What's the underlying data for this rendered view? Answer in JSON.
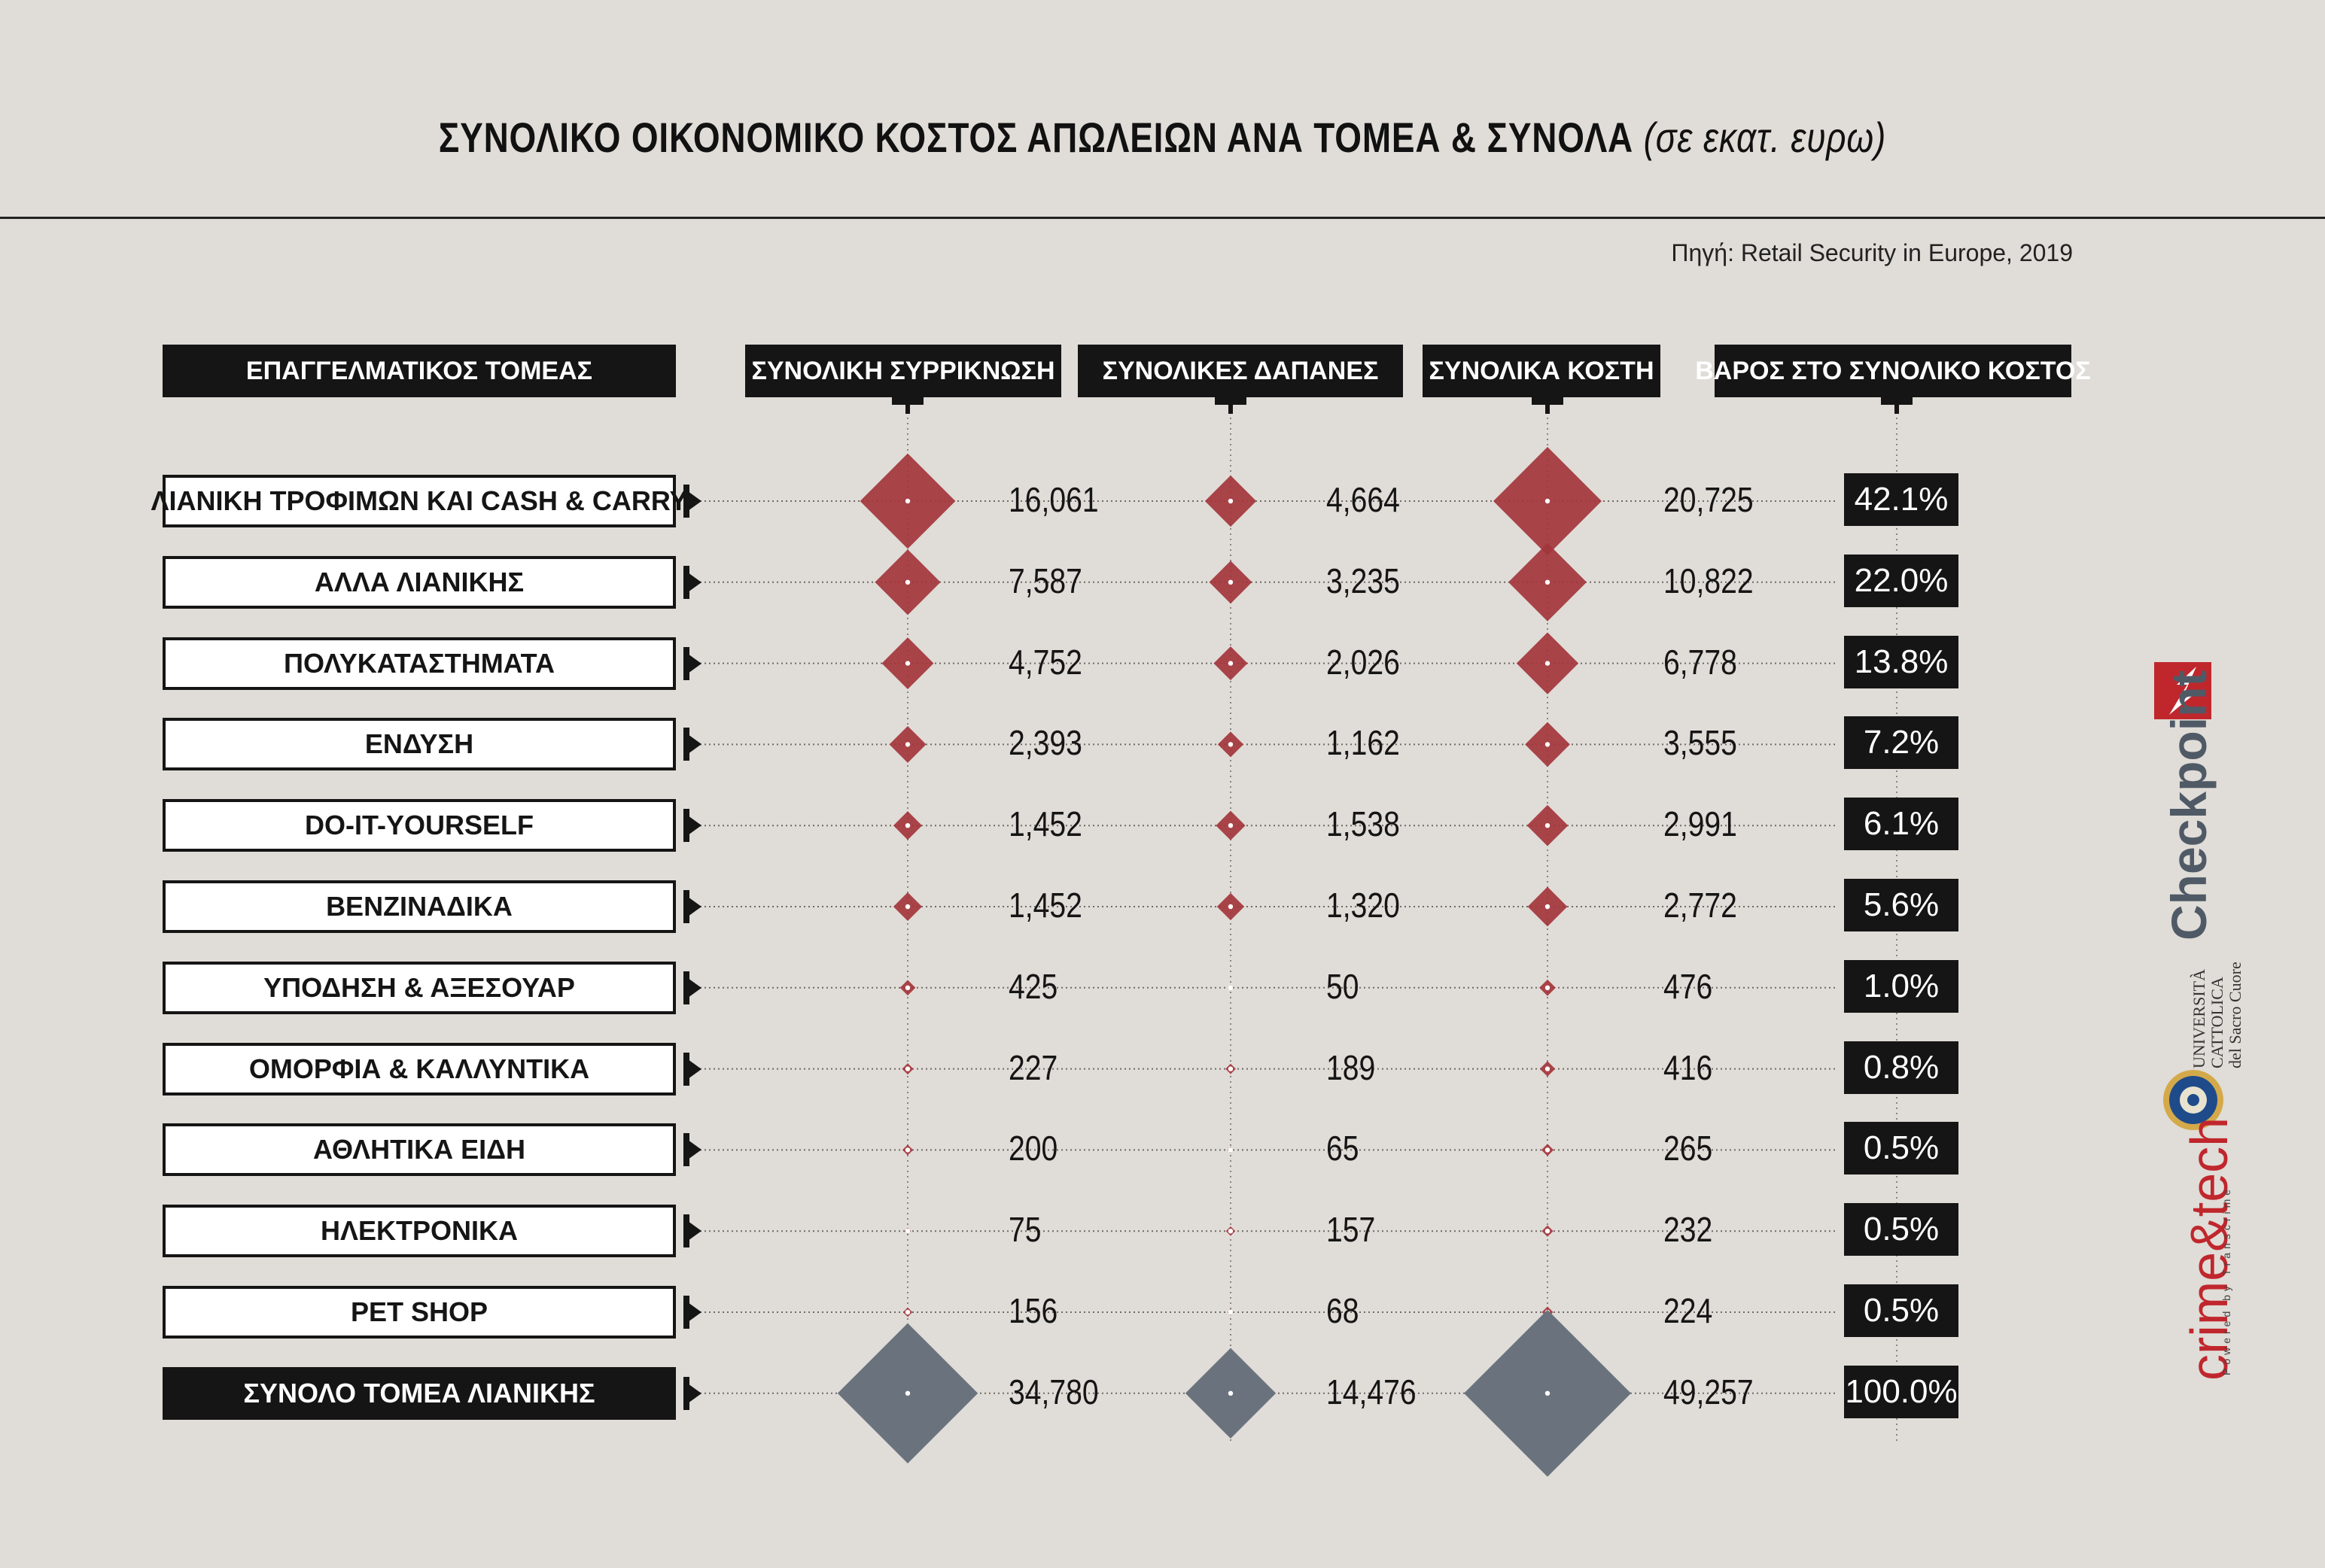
{
  "title": "ΣΥΝΟΛΙΚΟ ΟΙΚΟΝΟΜΙΚΟ ΚΟΣΤΟΣ ΑΠΩΛΕΙΩΝ ΑΝΑ ΤΟΜΕΑ & ΣΥΝΟΛΑ",
  "title_unit": "(σε εκατ. ευρω)",
  "source": "Πηγή: Retail Security in Europe, 2019",
  "colors": {
    "sector_diamond": "#a3353c",
    "total_diamond": "#6a737d",
    "background": "#e0dcd7",
    "dark": "#151515"
  },
  "logos": {
    "checkpoint": "Checkpoint",
    "ucsc": [
      "UNIVERSITÀ",
      "CATTOLICA",
      "del Sacro Cuore"
    ],
    "crimetech": "crime&tech",
    "crimetech_tagline": "Powered by Transcrime"
  },
  "chart_data": {
    "type": "table",
    "headers": {
      "sector": "ΕΠΑΓΓΕΛΜΑΤΙΚΟΣ ΤΟΜΕΑΣ",
      "shrinkage": "ΣΥΝΟΛΙΚΗ ΣΥΡΡΙΚΝΩΣΗ",
      "expenses": "ΣΥΝΟΛΙΚΕΣ ΔΑΠΑΝΕΣ",
      "costs": "ΣΥΝΟΛΙΚΑ ΚΟΣΤΗ",
      "weight": "ΒΑΡΟΣ ΣΤΟ ΣΥΝΟΛΙΚΟ ΚΟΣΤΟΣ"
    },
    "rows": [
      {
        "sector": "ΛΙΑΝΙΚΗ ΤΡΟΦΙΜΩΝ ΚΑΙ CASH & CARRY",
        "shrinkage": 16061,
        "shrinkage_label": "16,061",
        "expenses": 4664,
        "expenses_label": "4,664",
        "costs": 20725,
        "costs_label": "20,725",
        "weight": "42.1%"
      },
      {
        "sector": "ΑΛΛΑ ΛΙΑΝΙΚΗΣ",
        "shrinkage": 7587,
        "shrinkage_label": "7,587",
        "expenses": 3235,
        "expenses_label": "3,235",
        "costs": 10822,
        "costs_label": "10,822",
        "weight": "22.0%"
      },
      {
        "sector": "ΠΟΛΥΚΑΤΑΣΤΗΜΑΤΑ",
        "shrinkage": 4752,
        "shrinkage_label": "4,752",
        "expenses": 2026,
        "expenses_label": "2,026",
        "costs": 6778,
        "costs_label": "6,778",
        "weight": "13.8%"
      },
      {
        "sector": "ΕΝΔΥΣΗ",
        "shrinkage": 2393,
        "shrinkage_label": "2,393",
        "expenses": 1162,
        "expenses_label": "1,162",
        "costs": 3555,
        "costs_label": "3,555",
        "weight": "7.2%"
      },
      {
        "sector": "DO-IT-YOURSELF",
        "shrinkage": 1452,
        "shrinkage_label": "1,452",
        "expenses": 1538,
        "expenses_label": "1,538",
        "costs": 2991,
        "costs_label": "2,991",
        "weight": "6.1%"
      },
      {
        "sector": "ΒΕΝΖΙΝΑΔΙΚΑ",
        "shrinkage": 1452,
        "shrinkage_label": "1,452",
        "expenses": 1320,
        "expenses_label": "1,320",
        "costs": 2772,
        "costs_label": "2,772",
        "weight": "5.6%"
      },
      {
        "sector": "ΥΠΟΔΗΣΗ & ΑΞΕΣΟΥΑΡ",
        "shrinkage": 425,
        "shrinkage_label": "425",
        "expenses": 50,
        "expenses_label": "50",
        "costs": 476,
        "costs_label": "476",
        "weight": "1.0%"
      },
      {
        "sector": "ΟΜΟΡΦΙΑ & ΚΑΛΛΥΝΤΙΚΑ",
        "shrinkage": 227,
        "shrinkage_label": "227",
        "expenses": 189,
        "expenses_label": "189",
        "costs": 416,
        "costs_label": "416",
        "weight": "0.8%"
      },
      {
        "sector": "ΑΘΛΗΤΙΚΑ ΕΙΔΗ",
        "shrinkage": 200,
        "shrinkage_label": "200",
        "expenses": 65,
        "expenses_label": "65",
        "costs": 265,
        "costs_label": "265",
        "weight": "0.5%"
      },
      {
        "sector": "ΗΛΕΚΤΡΟΝΙΚΑ",
        "shrinkage": 75,
        "shrinkage_label": "75",
        "expenses": 157,
        "expenses_label": "157",
        "costs": 232,
        "costs_label": "232",
        "weight": "0.5%"
      },
      {
        "sector": "PET SHOP",
        "shrinkage": 156,
        "shrinkage_label": "156",
        "expenses": 68,
        "expenses_label": "68",
        "costs": 224,
        "costs_label": "224",
        "weight": "0.5%"
      }
    ],
    "total": {
      "sector": "ΣΥΝΟΛΟ ΤΟΜΕΑ ΛΙΑΝΙΚΗΣ",
      "shrinkage": 34780,
      "shrinkage_label": "34,780",
      "expenses": 14476,
      "expenses_label": "14,476",
      "costs": 49257,
      "costs_label": "49,257",
      "weight": "100.0%"
    }
  }
}
